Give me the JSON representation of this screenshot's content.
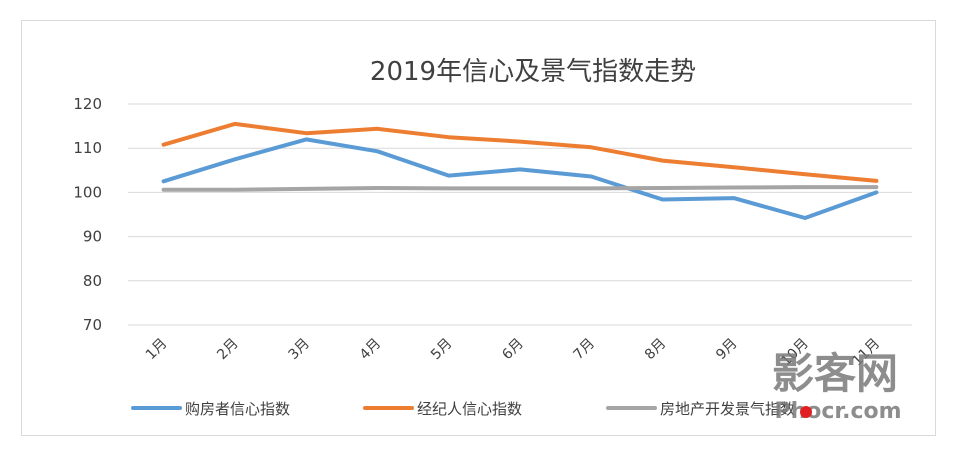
{
  "chart_data": {
    "type": "line",
    "title": "2019年信心及景气指数走势",
    "categories": [
      "1月",
      "2月",
      "3月",
      "4月",
      "5月",
      "6月",
      "7月",
      "8月",
      "9月",
      "10月",
      "11月"
    ],
    "ylim": [
      70,
      120
    ],
    "yticks": [
      70,
      80,
      90,
      100,
      110,
      120
    ],
    "grid": true,
    "legend_position": "bottom",
    "series": [
      {
        "name": "购房者信心指数",
        "color": "#5b9bd5",
        "values": [
          102.5,
          107.5,
          112,
          109.3,
          103.8,
          105.2,
          103.6,
          98.4,
          98.7,
          94.2,
          100
        ]
      },
      {
        "name": "经纪人信心指数",
        "color": "#ed7d31",
        "values": [
          110.8,
          115.5,
          113.4,
          114.4,
          112.5,
          111.5,
          110.2,
          107.2,
          105.7,
          104.1,
          102.6
        ]
      },
      {
        "name": "房地产开发景气指数",
        "color": "#a5a5a5",
        "values": [
          100.6,
          100.6,
          100.8,
          101.0,
          100.9,
          100.9,
          100.9,
          101.0,
          101.1,
          101.2,
          101.2
        ]
      }
    ]
  },
  "watermark": {
    "main": "影客网",
    "sub": "Phocr.com"
  }
}
